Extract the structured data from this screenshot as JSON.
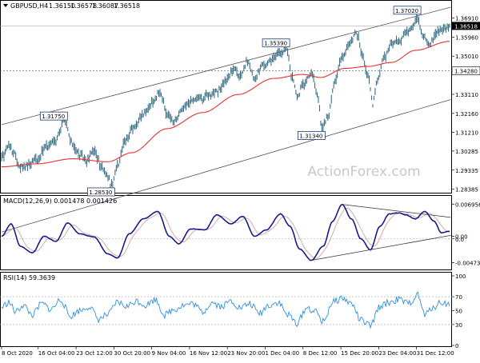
{
  "header": {
    "symbol": "GBPUSD,H4",
    "open": "1.36150",
    "high": "1.36578",
    "low": "1.36087",
    "close": "1.36518"
  },
  "colors": {
    "price_bar": "#3a6f86",
    "ma": "#e83030",
    "channel": "#555555",
    "macd": "#1a1a8c",
    "signal": "#d4a0a0",
    "rsi": "#2f8fe0",
    "grid_dash": "#b0b0b0",
    "current_box": "#000000",
    "watermark": "#c8c8c8"
  },
  "watermark": "ActionForex.com",
  "price_panel": {
    "ylim": [
      1.2825,
      1.3725
    ],
    "tick_labels": [
      "1.36910",
      "1.35960",
      "1.35010",
      "1.34280",
      "1.33110",
      "1.32160",
      "1.31210",
      "1.30285",
      "1.29335",
      "1.28385"
    ],
    "tick_values": [
      1.3691,
      1.3596,
      1.3501,
      1.3428,
      1.3311,
      1.3216,
      1.3121,
      1.30285,
      1.29335,
      1.28385
    ],
    "current_label": "1.36518",
    "current_value": 1.36518,
    "reference_label": "1.34280",
    "reference_value": 1.3428,
    "annotations": [
      {
        "text": "1.37020",
        "bar": 352,
        "value": 1.3702,
        "pos": "above"
      },
      {
        "text": "1.35390",
        "bar": 241,
        "value": 1.3539,
        "pos": "above"
      },
      {
        "text": "1.31750",
        "bar": 53,
        "value": 1.3175,
        "pos": "above"
      },
      {
        "text": "1.31340",
        "bar": 271,
        "value": 1.3134,
        "pos": "below"
      },
      {
        "text": "1.28530",
        "bar": 93,
        "value": 1.2853,
        "pos": "below"
      }
    ],
    "channel": {
      "upper": [
        [
          0,
          1.316
        ],
        [
          380,
          1.3745
        ]
      ],
      "lower": [
        [
          0,
          1.2625
        ],
        [
          380,
          1.3285
        ]
      ]
    }
  },
  "macd_panel": {
    "label": "MACD(12,26,9) 0.001478 0.001426",
    "ylim": [
      -0.0058,
      0.0078
    ],
    "tick_labels": [
      "0.006956",
      "0.00",
      "0.0",
      "-0.004736"
    ],
    "tick_values": [
      0.006956,
      0.0005,
      0.0,
      -0.004736
    ],
    "zero_value": 0.0,
    "triangle": {
      "upper": [
        [
          288,
          0.0069
        ],
        [
          380,
          0.0043
        ]
      ],
      "lower": [
        [
          262,
          -0.0043
        ],
        [
          380,
          0.0007
        ]
      ]
    }
  },
  "rsi_panel": {
    "label": "RSI(14) 59.3639",
    "ylim": [
      0,
      100
    ],
    "tick_labels": [
      "100",
      "70",
      "50",
      "30",
      "0"
    ],
    "tick_values": [
      100,
      70,
      50,
      30,
      0
    ],
    "levels": [
      70,
      30
    ]
  },
  "x_axis": {
    "labels": [
      {
        "text": "8 Oct 2020",
        "bar": 0
      },
      {
        "text": "16 Oct 04:00",
        "bar": 31
      },
      {
        "text": "23 Oct 12:00",
        "bar": 63
      },
      {
        "text": "30 Oct 20:00",
        "bar": 95
      },
      {
        "text": "9 Nov 04:00",
        "bar": 127
      },
      {
        "text": "16 Nov 12:00",
        "bar": 159
      },
      {
        "text": "23 Nov 20:00",
        "bar": 191
      },
      {
        "text": "1 Dec 04:00",
        "bar": 223
      },
      {
        "text": "8 Dec 12:00",
        "bar": 255
      },
      {
        "text": "15 Dec 20:00",
        "bar": 287
      },
      {
        "text": "23 Dec 04:00",
        "bar": 319
      },
      {
        "text": "31 Dec 12:00",
        "bar": 351
      }
    ]
  },
  "chart_data": {
    "type": "line",
    "title": "GBPUSD,H4",
    "n_bars": 380,
    "price_anchors": [
      [
        0,
        1.299
      ],
      [
        6,
        1.306
      ],
      [
        10,
        1.302
      ],
      [
        16,
        1.295
      ],
      [
        22,
        1.296
      ],
      [
        30,
        1.299
      ],
      [
        38,
        1.305
      ],
      [
        45,
        1.308
      ],
      [
        53,
        1.3175
      ],
      [
        60,
        1.306
      ],
      [
        66,
        1.301
      ],
      [
        72,
        1.298
      ],
      [
        78,
        1.303
      ],
      [
        84,
        1.295
      ],
      [
        90,
        1.29
      ],
      [
        93,
        1.2853
      ],
      [
        98,
        1.296
      ],
      [
        104,
        1.308
      ],
      [
        112,
        1.315
      ],
      [
        120,
        1.321
      ],
      [
        128,
        1.328
      ],
      [
        134,
        1.332
      ],
      [
        140,
        1.321
      ],
      [
        146,
        1.317
      ],
      [
        152,
        1.323
      ],
      [
        160,
        1.328
      ],
      [
        168,
        1.329
      ],
      [
        176,
        1.331
      ],
      [
        182,
        1.332
      ],
      [
        190,
        1.338
      ],
      [
        196,
        1.344
      ],
      [
        202,
        1.341
      ],
      [
        208,
        1.347
      ],
      [
        214,
        1.339
      ],
      [
        220,
        1.345
      ],
      [
        228,
        1.348
      ],
      [
        236,
        1.352
      ],
      [
        241,
        1.3539
      ],
      [
        246,
        1.339
      ],
      [
        250,
        1.33
      ],
      [
        255,
        1.336
      ],
      [
        262,
        1.342
      ],
      [
        268,
        1.33
      ],
      [
        271,
        1.3134
      ],
      [
        276,
        1.32
      ],
      [
        282,
        1.338
      ],
      [
        288,
        1.35
      ],
      [
        294,
        1.356
      ],
      [
        300,
        1.362
      ],
      [
        306,
        1.349
      ],
      [
        310,
        1.34
      ],
      [
        314,
        1.326
      ],
      [
        318,
        1.338
      ],
      [
        324,
        1.35
      ],
      [
        330,
        1.356
      ],
      [
        336,
        1.358
      ],
      [
        342,
        1.362
      ],
      [
        348,
        1.366
      ],
      [
        352,
        1.3702
      ],
      [
        356,
        1.36
      ],
      [
        362,
        1.356
      ],
      [
        368,
        1.362
      ],
      [
        374,
        1.364
      ],
      [
        379,
        1.3652
      ]
    ],
    "ma_anchors": [
      [
        0,
        1.295
      ],
      [
        30,
        1.2965
      ],
      [
        60,
        1.299
      ],
      [
        90,
        1.2975
      ],
      [
        110,
        1.302
      ],
      [
        140,
        1.314
      ],
      [
        170,
        1.322
      ],
      [
        200,
        1.331
      ],
      [
        230,
        1.339
      ],
      [
        255,
        1.341
      ],
      [
        270,
        1.3395
      ],
      [
        290,
        1.344
      ],
      [
        310,
        1.345
      ],
      [
        330,
        1.347
      ],
      [
        350,
        1.353
      ],
      [
        379,
        1.3575
      ]
    ],
    "macd_anchors": [
      [
        0,
        0.0005
      ],
      [
        8,
        0.003
      ],
      [
        16,
        -0.0015
      ],
      [
        26,
        -0.0028
      ],
      [
        36,
        0.0005
      ],
      [
        46,
        -0.0005
      ],
      [
        56,
        0.0032
      ],
      [
        66,
        0.001
      ],
      [
        78,
        0.0004
      ],
      [
        90,
        -0.003
      ],
      [
        98,
        -0.0038
      ],
      [
        108,
        0.001
      ],
      [
        120,
        0.004
      ],
      [
        132,
        0.0055
      ],
      [
        142,
        0.0005
      ],
      [
        150,
        -0.001
      ],
      [
        160,
        0.002
      ],
      [
        172,
        0.0018
      ],
      [
        182,
        0.0048
      ],
      [
        194,
        0.003
      ],
      [
        204,
        0.0045
      ],
      [
        214,
        0.0005
      ],
      [
        224,
        0.0018
      ],
      [
        236,
        0.005
      ],
      [
        244,
        0.0025
      ],
      [
        252,
        -0.002
      ],
      [
        262,
        -0.0043
      ],
      [
        272,
        -0.0015
      ],
      [
        280,
        0.0035
      ],
      [
        288,
        0.0069
      ],
      [
        296,
        0.004
      ],
      [
        304,
        0.0
      ],
      [
        312,
        -0.0022
      ],
      [
        320,
        0.0025
      ],
      [
        328,
        0.005
      ],
      [
        336,
        0.0052
      ],
      [
        342,
        0.0048
      ],
      [
        350,
        0.004
      ],
      [
        358,
        0.0055
      ],
      [
        366,
        0.0035
      ],
      [
        372,
        0.0012
      ],
      [
        379,
        0.0015
      ]
    ],
    "rsi_anchors": [
      [
        0,
        55
      ],
      [
        6,
        62
      ],
      [
        12,
        48
      ],
      [
        18,
        58
      ],
      [
        26,
        44
      ],
      [
        34,
        60
      ],
      [
        42,
        52
      ],
      [
        50,
        66
      ],
      [
        58,
        42
      ],
      [
        66,
        50
      ],
      [
        74,
        56
      ],
      [
        82,
        38
      ],
      [
        90,
        44
      ],
      [
        98,
        62
      ],
      [
        106,
        56
      ],
      [
        114,
        64
      ],
      [
        122,
        58
      ],
      [
        130,
        66
      ],
      [
        138,
        44
      ],
      [
        146,
        52
      ],
      [
        154,
        58
      ],
      [
        162,
        60
      ],
      [
        170,
        48
      ],
      [
        178,
        62
      ],
      [
        186,
        56
      ],
      [
        194,
        64
      ],
      [
        202,
        54
      ],
      [
        210,
        60
      ],
      [
        218,
        46
      ],
      [
        226,
        58
      ],
      [
        234,
        62
      ],
      [
        242,
        44
      ],
      [
        250,
        32
      ],
      [
        258,
        54
      ],
      [
        266,
        48
      ],
      [
        272,
        34
      ],
      [
        280,
        62
      ],
      [
        288,
        68
      ],
      [
        296,
        60
      ],
      [
        304,
        36
      ],
      [
        312,
        28
      ],
      [
        320,
        56
      ],
      [
        328,
        62
      ],
      [
        336,
        66
      ],
      [
        344,
        60
      ],
      [
        352,
        72
      ],
      [
        358,
        44
      ],
      [
        366,
        56
      ],
      [
        372,
        62
      ],
      [
        379,
        59
      ]
    ]
  }
}
